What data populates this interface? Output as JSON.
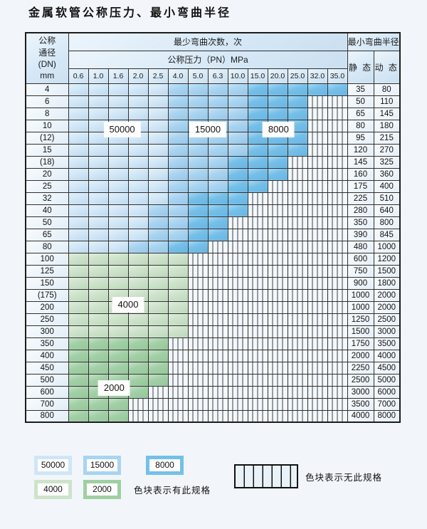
{
  "title": "金属软管公称压力、最小弯曲半径",
  "table": {
    "dn_header_lines": [
      "公称",
      "通径",
      "(DN)",
      "mm"
    ],
    "cycles_header": "最少弯曲次数，次",
    "pressure_header": "公称压力（PN）MPa",
    "pressures": [
      "0.6",
      "1.0",
      "1.6",
      "2.0",
      "2.5",
      "4.0",
      "5.0",
      "6.3",
      "10.0",
      "15.0",
      "20.0",
      "25.0",
      "32.0",
      "35.0"
    ],
    "radius_header": "最小弯曲半径",
    "static_label": "静 态",
    "dynamic_label": "动 态"
  },
  "chart_data": {
    "type": "table",
    "zone_legend": {
      "L": 50000,
      "M": 15000,
      "D": 8000,
      "G": 4000,
      "g": 2000,
      "S": "no-spec"
    },
    "columns_pn_mpa": [
      0.6,
      1.0,
      1.6,
      2.0,
      2.5,
      4.0,
      5.0,
      6.3,
      10.0,
      15.0,
      20.0,
      25.0,
      32.0,
      35.0
    ],
    "rows": [
      {
        "dn": "4",
        "zones": "LLLLLMMMMDDDDD",
        "static": "35",
        "dynamic": "80"
      },
      {
        "dn": "6",
        "zones": "LLLLLMMMMDDDSS",
        "static": "50",
        "dynamic": "110"
      },
      {
        "dn": "8",
        "zones": "LLLLLMMMMDDDSS",
        "static": "65",
        "dynamic": "145"
      },
      {
        "dn": "10",
        "zones": "LLLLLMMMMDDDSS",
        "static": "80",
        "dynamic": "180"
      },
      {
        "dn": "(12)",
        "zones": "LLLLLMMMMDDDSS",
        "static": "95",
        "dynamic": "215"
      },
      {
        "dn": "15",
        "zones": "LLLLLMMMMDDDSS",
        "static": "120",
        "dynamic": "270"
      },
      {
        "dn": "(18)",
        "zones": "LLLLLMMMDDDSSS",
        "static": "145",
        "dynamic": "325"
      },
      {
        "dn": "20",
        "zones": "LLLLLMMMDDDSSS",
        "static": "160",
        "dynamic": "360"
      },
      {
        "dn": "25",
        "zones": "LLLLLMMMDDSSSS",
        "static": "175",
        "dynamic": "400"
      },
      {
        "dn": "32",
        "zones": "LLLLLMDDDSSSSS",
        "static": "225",
        "dynamic": "510"
      },
      {
        "dn": "40",
        "zones": "LLLLMMDDDSSSSS",
        "static": "280",
        "dynamic": "640"
      },
      {
        "dn": "50",
        "zones": "LLLLMMDDSSSSSS",
        "static": "350",
        "dynamic": "800"
      },
      {
        "dn": "65",
        "zones": "LLLLMMDDSSSSSS",
        "static": "390",
        "dynamic": "845"
      },
      {
        "dn": "80",
        "zones": "LLLMMDDSSSSSSS",
        "static": "480",
        "dynamic": "1000"
      },
      {
        "dn": "100",
        "zones": "GGGGGGSSSSSSSS",
        "static": "600",
        "dynamic": "1200"
      },
      {
        "dn": "125",
        "zones": "GGGGGGSSSSSSSS",
        "static": "750",
        "dynamic": "1500"
      },
      {
        "dn": "150",
        "zones": "GGGGGGSSSSSSSS",
        "static": "900",
        "dynamic": "1800"
      },
      {
        "dn": "(175)",
        "zones": "GGGGGGSSSSSSSS",
        "static": "1000",
        "dynamic": "2000"
      },
      {
        "dn": "200",
        "zones": "GGGGGGSSSSSSSS",
        "static": "1000",
        "dynamic": "2000"
      },
      {
        "dn": "250",
        "zones": "GGGGGGSSSSSSSS",
        "static": "1250",
        "dynamic": "2500"
      },
      {
        "dn": "300",
        "zones": "GGGGGGSSSSSSSS",
        "static": "1500",
        "dynamic": "3000"
      },
      {
        "dn": "350",
        "zones": "gggggSSSSSSSSS",
        "static": "1750",
        "dynamic": "3500"
      },
      {
        "dn": "400",
        "zones": "gggggSSSSSSSSS",
        "static": "2000",
        "dynamic": "4000"
      },
      {
        "dn": "450",
        "zones": "gggggSSSSSSSSS",
        "static": "2250",
        "dynamic": "4500"
      },
      {
        "dn": "500",
        "zones": "gggggSSSSSSSSS",
        "static": "2500",
        "dynamic": "5000"
      },
      {
        "dn": "600",
        "zones": "ggggSSSSSSSSSS",
        "static": "3000",
        "dynamic": "6000"
      },
      {
        "dn": "700",
        "zones": "gggSSSSSSSSSSS",
        "static": "3500",
        "dynamic": "7000"
      },
      {
        "dn": "800",
        "zones": "gggSSSSSSSSSSS",
        "static": "4000",
        "dynamic": "8000"
      }
    ]
  },
  "overlays": [
    {
      "text": "50000",
      "row": 3.8,
      "col": 2.7
    },
    {
      "text": "15000",
      "row": 3.8,
      "col": 7.0
    },
    {
      "text": "8000",
      "row": 3.8,
      "col": 10.55
    },
    {
      "text": "4000",
      "row": 18.3,
      "col": 3.0
    },
    {
      "text": "2000",
      "row": 25.2,
      "col": 2.3
    }
  ],
  "legend": {
    "swatches": [
      {
        "value": "50000",
        "zone": "L"
      },
      {
        "value": "15000",
        "zone": "M"
      },
      {
        "value": "8000",
        "zone": "D"
      },
      {
        "value": "4000",
        "zone": "G"
      },
      {
        "value": "2000",
        "zone": "g"
      }
    ],
    "has_spec_text": "色块表示有此规格",
    "no_spec_text": "色块表示无此规格"
  },
  "colors": {
    "cycles_50000": "#d2e8f8",
    "cycles_15000": "#a8d4f1",
    "cycles_8000": "#74c0ea",
    "cycles_4000": "#cde3ca",
    "cycles_2000": "#a2d0a6",
    "grid": "#2e2e2e"
  }
}
